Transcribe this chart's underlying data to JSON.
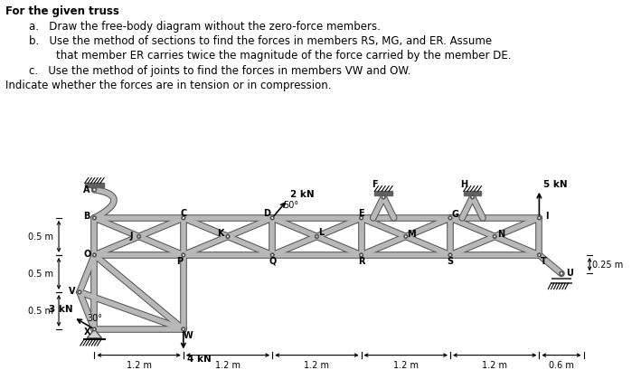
{
  "text_lines": [
    "For the given truss",
    "a.   Draw the free-body diagram without the zero-force members.",
    "b.   Use the method of sections to find the forces in members RS, MG, and ER. Assume",
    "        that member ER carries twice the magnitude of the force carried by the member DE.",
    "c.   Use the method of joints to find the forces in members VW and OW.",
    "Indicate whether the forces are in tension or in compression."
  ],
  "truss_gray": "#b8b8b8",
  "truss_dark": "#555555",
  "truss_lw": 4.0,
  "node_r": 0.018,
  "bg": "#ffffff"
}
